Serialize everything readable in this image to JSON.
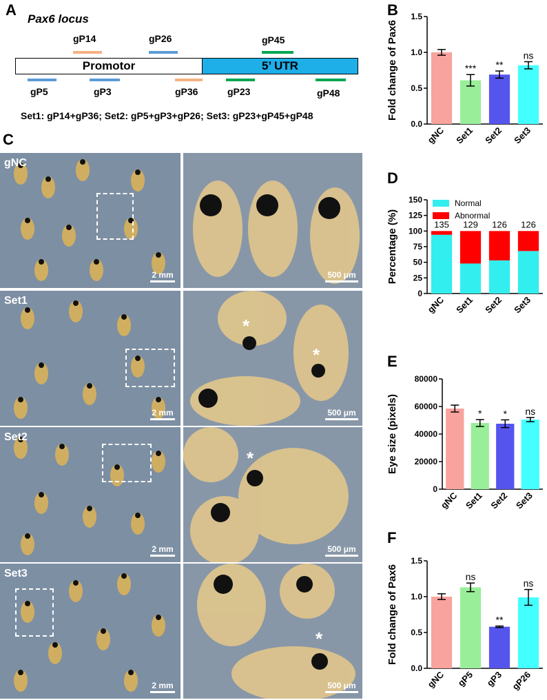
{
  "panels": {
    "a": "A",
    "b": "B",
    "c": "C",
    "d": "D",
    "e": "E",
    "f": "F"
  },
  "locus": {
    "title": "Pax6 locus",
    "promotor": "Promotor",
    "utr": "5’ UTR",
    "guides_top": [
      "gP14",
      "gP26",
      "gP45"
    ],
    "guides_bottom": [
      "gP5",
      "gP3",
      "gP36",
      "gP23",
      "gP48"
    ],
    "sets_text": "Set1: gP14+gP36; Set2: gP5+gP3+gP26; Set3: gP23+gP45+gP48",
    "colors": {
      "orange": "#f4b183",
      "blue": "#5b9bd5",
      "green": "#00a651",
      "utr": "#1eaee8"
    }
  },
  "photos": {
    "rows": [
      {
        "label": "gNC",
        "scale_left": "2 mm",
        "scale_right": "500 μm"
      },
      {
        "label": "Set1",
        "scale_left": "2 mm",
        "scale_right": "500 μm"
      },
      {
        "label": "Set2",
        "scale_left": "2 mm",
        "scale_right": "500 μm"
      },
      {
        "label": "Set3",
        "scale_left": "2 mm",
        "scale_right": "500 μm"
      }
    ],
    "asterisk": "*"
  },
  "chart_data": [
    {
      "panel": "B",
      "type": "bar",
      "categories": [
        "gNC",
        "Set1",
        "Set2",
        "Set3"
      ],
      "values": [
        1.0,
        0.61,
        0.69,
        0.82
      ],
      "errors": [
        0.04,
        0.08,
        0.05,
        0.05
      ],
      "significance": [
        "",
        "***",
        "**",
        "ns"
      ],
      "ylabel": "Fold change of Pax6",
      "ylim": [
        0,
        1.5
      ],
      "yticks": [
        "0.0",
        "0.5",
        "1.0",
        "1.5"
      ],
      "colors": [
        "#f8a39d",
        "#99ee99",
        "#5555ee",
        "#44ffff"
      ]
    },
    {
      "panel": "D",
      "type": "bar",
      "stacked": true,
      "categories": [
        "gNC",
        "Set1",
        "Set2",
        "Set3"
      ],
      "series": [
        {
          "name": "Normal",
          "values": [
            94,
            48,
            53,
            68
          ],
          "color": "#33eeee"
        },
        {
          "name": "Abnormal",
          "values": [
            6,
            52,
            47,
            32
          ],
          "color": "#ff0000"
        }
      ],
      "counts": [
        "135",
        "129",
        "126",
        "126"
      ],
      "ylabel": "Percentage (%)",
      "ylim": [
        0,
        150
      ],
      "yticks": [
        "0",
        "25",
        "50",
        "75",
        "100",
        "125",
        "150"
      ],
      "legend": "top-left"
    },
    {
      "panel": "E",
      "type": "bar",
      "categories": [
        "gNC",
        "Set1",
        "Set2",
        "Set3"
      ],
      "values": [
        58500,
        48000,
        47500,
        50500
      ],
      "errors": [
        2500,
        2500,
        2800,
        1500
      ],
      "significance": [
        "",
        "*",
        "*",
        "ns"
      ],
      "ylabel": "Eye size (pixels)",
      "ylim": [
        0,
        80000
      ],
      "yticks": [
        "0",
        "20000",
        "40000",
        "60000",
        "80000"
      ],
      "colors": [
        "#f8a39d",
        "#99ee99",
        "#5555ee",
        "#44ffff"
      ]
    },
    {
      "panel": "F",
      "type": "bar",
      "categories": [
        "gNC",
        "gP5",
        "gP3",
        "gP26"
      ],
      "values": [
        1.0,
        1.13,
        0.58,
        0.99
      ],
      "errors": [
        0.04,
        0.06,
        0.01,
        0.11
      ],
      "significance": [
        "",
        "ns",
        "**",
        "ns"
      ],
      "ylabel": "Fold change of Pax6",
      "ylim": [
        0,
        1.5
      ],
      "yticks": [
        "0.0",
        "0.5",
        "1.0",
        "1.5"
      ],
      "colors": [
        "#f8a39d",
        "#99ee99",
        "#5555ee",
        "#44ffff"
      ]
    }
  ]
}
